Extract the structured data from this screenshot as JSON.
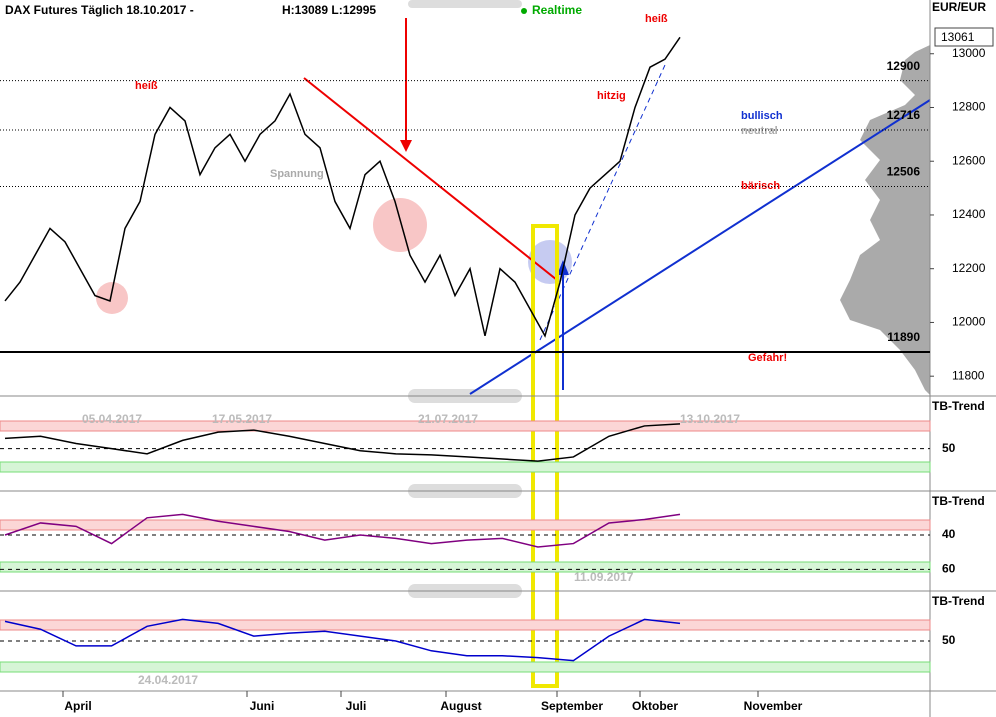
{
  "chart_data": {
    "type": "line",
    "title": "DAX Futures Täglich 18.10.2017 -",
    "subtitle": "H:13089 L:12995",
    "status": "Realtime",
    "unit_label": "EUR/EUR",
    "last_price": 13061,
    "x_labels": [
      "April",
      "Juni",
      "Juli",
      "August",
      "September",
      "Oktober",
      "November"
    ],
    "series": [
      {
        "color": "#000000",
        "values": [
          12080,
          12150,
          12250,
          12350,
          12300,
          12200,
          12100,
          12080,
          12350,
          12450,
          12700,
          12800,
          12750,
          12550,
          12650,
          12700,
          12600,
          12700,
          12750,
          12850,
          12700,
          12650,
          12450,
          12350,
          12550,
          12600,
          12450,
          12250,
          12150,
          12250,
          12100,
          12200,
          11950,
          12200,
          12150,
          12050,
          11950,
          12150,
          12400,
          12500,
          12550,
          12600,
          12800,
          12950,
          12980,
          13061
        ]
      }
    ],
    "ylim": [
      11730,
      13200
    ],
    "yticks": [
      11800,
      12000,
      12200,
      12400,
      12600,
      12800,
      13000
    ],
    "levels": [
      12900,
      12716,
      12506,
      11890
    ],
    "annotations": {
      "heiss_left": "heiß",
      "heiss_right": "heiß",
      "hitzig": "hitzig",
      "bullisch": "bullisch",
      "neutral": "neutral",
      "baerisch": "bärisch",
      "gefahr": "Gefahr!",
      "spannung": "Spannung"
    },
    "panels": [
      {
        "label": "TB-Trend",
        "color": "#000000",
        "ylim": [
          10,
          100
        ],
        "yticks": [
          50
        ],
        "dates": [
          "05.04.2017",
          "17.05.2017",
          "21.07.2017",
          "13.10.2017"
        ],
        "values": [
          60,
          62,
          55,
          50,
          45,
          58,
          66,
          68,
          62,
          55,
          48,
          45,
          44,
          42,
          40,
          38,
          42,
          62,
          72,
          74
        ]
      },
      {
        "label": "TB-Trend",
        "color": "#800080",
        "ylim": [
          15,
          72
        ],
        "inverted": true,
        "yticks": [
          40,
          60
        ],
        "dates": [
          "11.09.2017"
        ],
        "values": [
          40,
          33,
          35,
          45,
          30,
          28,
          32,
          35,
          38,
          43,
          40,
          42,
          45,
          43,
          42,
          47,
          45,
          33,
          31,
          28
        ]
      },
      {
        "label": "TB-Trend",
        "color": "#0000cc",
        "ylim": [
          0,
          100
        ],
        "yticks": [
          50
        ],
        "dates": [
          "24.04.2017"
        ],
        "values": [
          70,
          62,
          45,
          45,
          65,
          72,
          68,
          55,
          58,
          60,
          55,
          50,
          40,
          35,
          35,
          33,
          30,
          55,
          72,
          68
        ]
      }
    ]
  }
}
